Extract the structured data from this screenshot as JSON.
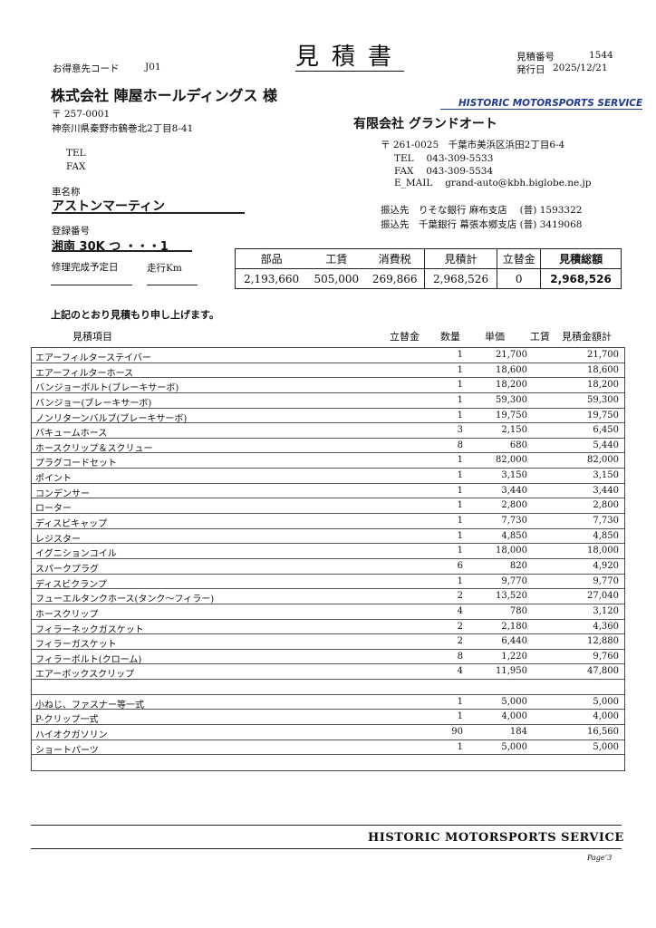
{
  "header": {
    "title": "見積書",
    "customer_code_label": "お得意先コード",
    "customer_code": "J01",
    "estimate_no_label": "見積番号",
    "estimate_no": "1544",
    "issue_date_label": "発行日",
    "issue_date": "2025/12/21"
  },
  "customer": {
    "name": "株式会社 陣屋ホールディングス 様",
    "postal": "〒 257-0001",
    "address": "神奈川県秦野市鶴巻北2丁目8-41",
    "tel_label": "TEL",
    "fax_label": "FAX"
  },
  "vehicle": {
    "name_label": "車名称",
    "name": "アストンマーティン",
    "reg_label": "登録番号",
    "reg": "湘南 30K つ ・・・1",
    "completion_label": "修理完成予定日",
    "mileage_label": "走行Km"
  },
  "company": {
    "brand": "HISTORIC MOTORSPORTS SERVICE",
    "brand_color": "#1f3a93",
    "name": "有限会社 グランドオート",
    "postal_address": "〒 261-0025　千葉市美浜区浜田2丁目6-4",
    "tel": "TEL　 043-309-5533",
    "fax": "FAX　 043-309-5534",
    "email": "E_MAIL　 grand-auto@kbh.biglobe.ne.jp",
    "bank1": "振込先　りそな銀行 麻布支店　 (普) 1593322",
    "bank2": "振込先　千葉銀行 幕張本郷支店 (普) 3419068"
  },
  "summary": {
    "headers": [
      "部品",
      "工賃",
      "消費税",
      "見積計",
      "立替金",
      "見積総額"
    ],
    "values": [
      "2,193,660",
      "505,000",
      "269,866",
      "2,968,526",
      "0",
      "2,968,526"
    ]
  },
  "statement": "上記のとおり見積もり申し上げます。",
  "table": {
    "headers": [
      "見積項目",
      "立替金",
      "数量",
      "単価",
      "工賃",
      "見積金額計"
    ],
    "rows": [
      [
        "エアーフィルターステイバー",
        "",
        "1",
        "21,700",
        "",
        "21,700"
      ],
      [
        "エアーフィルターホース",
        "",
        "1",
        "18,600",
        "",
        "18,600"
      ],
      [
        "バンジョーボルト(ブレーキサーボ)",
        "",
        "1",
        "18,200",
        "",
        "18,200"
      ],
      [
        "バンジョー(ブレーキサーボ)",
        "",
        "1",
        "59,300",
        "",
        "59,300"
      ],
      [
        "ノンリターンバルブ(ブレーキサーボ)",
        "",
        "1",
        "19,750",
        "",
        "19,750"
      ],
      [
        "バキュームホース",
        "",
        "3",
        "2,150",
        "",
        "6,450"
      ],
      [
        "ホースクリップ＆スクリュー",
        "",
        "8",
        "680",
        "",
        "5,440"
      ],
      [
        "プラグコードセット",
        "",
        "1",
        "82,000",
        "",
        "82,000"
      ],
      [
        "ポイント",
        "",
        "1",
        "3,150",
        "",
        "3,150"
      ],
      [
        "コンデンサー",
        "",
        "1",
        "3,440",
        "",
        "3,440"
      ],
      [
        "ローター",
        "",
        "1",
        "2,800",
        "",
        "2,800"
      ],
      [
        "ディスビキャップ",
        "",
        "1",
        "7,730",
        "",
        "7,730"
      ],
      [
        "レジスター",
        "",
        "1",
        "4,850",
        "",
        "4,850"
      ],
      [
        "イグニションコイル",
        "",
        "1",
        "18,000",
        "",
        "18,000"
      ],
      [
        "スパークプラグ",
        "",
        "6",
        "820",
        "",
        "4,920"
      ],
      [
        "ディスビクランプ",
        "",
        "1",
        "9,770",
        "",
        "9,770"
      ],
      [
        "フューエルタンクホース(タンク～フィラー)",
        "",
        "2",
        "13,520",
        "",
        "27,040"
      ],
      [
        "ホースクリップ",
        "",
        "4",
        "780",
        "",
        "3,120"
      ],
      [
        "フィラーネックガスケット",
        "",
        "2",
        "2,180",
        "",
        "4,360"
      ],
      [
        "フィラーガスケット",
        "",
        "2",
        "6,440",
        "",
        "12,880"
      ],
      [
        "フィラーボルト(クローム)",
        "",
        "8",
        "1,220",
        "",
        "9,760"
      ],
      [
        "エアーボックスクリップ",
        "",
        "4",
        "11,950",
        "",
        "47,800"
      ],
      [
        "",
        "",
        "",
        "",
        "",
        ""
      ],
      [
        "小ねじ、ファスナー等一式",
        "",
        "1",
        "5,000",
        "",
        "5,000"
      ],
      [
        "P-クリップ一式",
        "",
        "1",
        "4,000",
        "",
        "4,000"
      ],
      [
        "ハイオクガソリン",
        "",
        "90",
        "184",
        "",
        "16,560"
      ],
      [
        "ショートパーツ",
        "",
        "1",
        "5,000",
        "",
        "5,000"
      ],
      [
        "",
        "",
        "",
        "",
        "",
        ""
      ]
    ]
  },
  "footer": {
    "brand": "HISTORIC MOTORSPORTS SERVICE",
    "page": "Page’3"
  }
}
